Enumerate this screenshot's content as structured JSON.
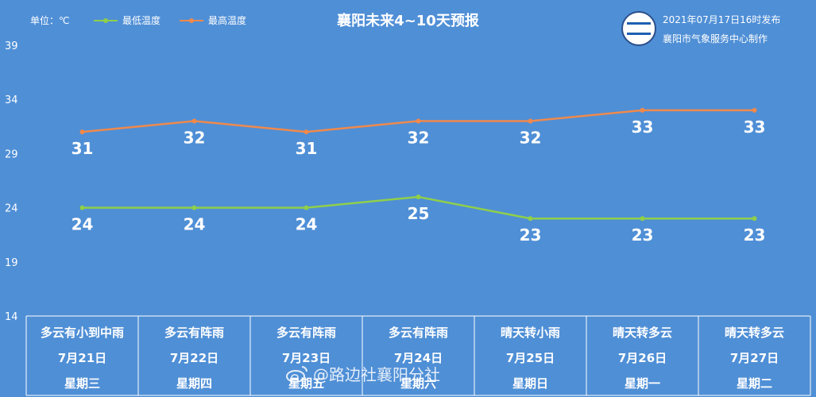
{
  "header": {
    "unit": "单位：℃",
    "title": "襄阳未来4~10天预报",
    "issued": "2021年07月17日16时发布",
    "maker": "襄阳市气象服务中心制作",
    "logo_icon": "xiangyang-meteorology-logo"
  },
  "legend": {
    "low_label": "最低温度",
    "high_label": "最高温度"
  },
  "colors": {
    "background": "#4f8fd6",
    "low_line": "#8fcf4a",
    "high_line": "#f0894b",
    "grid": "#ffffff"
  },
  "table": {
    "weather": [
      "多云有小到中雨",
      "多云有阵雨",
      "多云有阵雨",
      "多云有阵雨",
      "晴天转小雨",
      "晴天转多云",
      "晴天转多云"
    ],
    "dates": [
      "7月21日",
      "7月22日",
      "7月23日",
      "7月24日",
      "7月25日",
      "7月26日",
      "7月27日"
    ],
    "weekdays": [
      "星期三",
      "星期四",
      "星期五",
      "星期六",
      "星期日",
      "星期一",
      "星期二"
    ]
  },
  "watermark": {
    "text": "@路边社襄阳分社",
    "icon": "weibo-icon"
  },
  "chart_data": {
    "type": "line",
    "categories": [
      "7月21日",
      "7月22日",
      "7月23日",
      "7月24日",
      "7月25日",
      "7月26日",
      "7月27日"
    ],
    "series": [
      {
        "name": "最低温度",
        "values": [
          24,
          24,
          24,
          25,
          23,
          23,
          23
        ]
      },
      {
        "name": "最高温度",
        "values": [
          31,
          32,
          31,
          32,
          32,
          33,
          33
        ]
      }
    ],
    "ylim": [
      14,
      39
    ],
    "yticks": [
      14,
      19,
      24,
      29,
      34,
      39
    ],
    "grid": false,
    "legend_position": "top-left",
    "data_labels": true
  }
}
